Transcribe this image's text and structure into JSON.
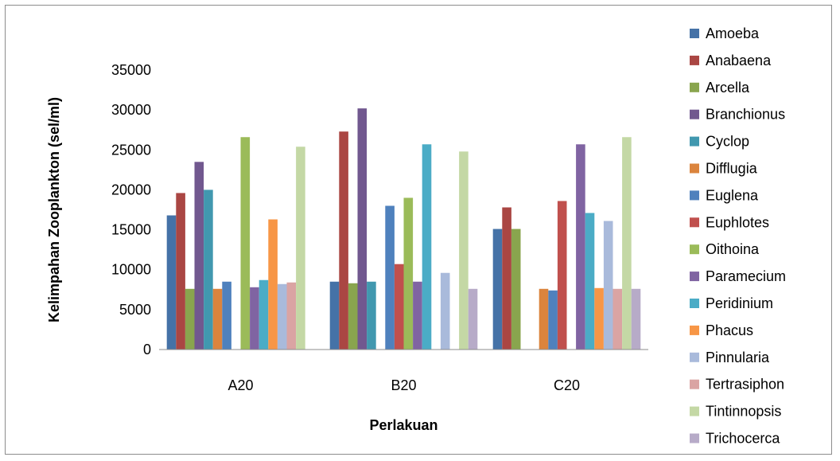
{
  "chart_data": {
    "type": "bar",
    "title": "",
    "xlabel": "Perlakuan",
    "ylabel": "Kelimpahan Zooplankton (sel/ml)",
    "categories": [
      "A20",
      "B20",
      "C20"
    ],
    "ylim": [
      0,
      35000
    ],
    "yticks": [
      0,
      5000,
      10000,
      15000,
      20000,
      25000,
      30000,
      35000
    ],
    "grid": false,
    "legend": "right",
    "series": [
      {
        "name": "Amoeba",
        "color": "#4572A7",
        "values": [
          16800,
          8500,
          15100
        ]
      },
      {
        "name": "Anabaena",
        "color": "#AA4643",
        "values": [
          19600,
          27300,
          17800
        ]
      },
      {
        "name": "Arcella",
        "color": "#89A54E",
        "values": [
          7600,
          8300,
          15100
        ]
      },
      {
        "name": "Branchionus",
        "color": "#71588F",
        "values": [
          23500,
          30200,
          null
        ]
      },
      {
        "name": "Cyclop",
        "color": "#4198AF",
        "values": [
          20000,
          8500,
          null
        ]
      },
      {
        "name": "Difflugia",
        "color": "#DB843D",
        "values": [
          7600,
          null,
          7600
        ]
      },
      {
        "name": "Euglena",
        "color": "#4F81BD",
        "values": [
          8500,
          18000,
          7400
        ]
      },
      {
        "name": "Euphlotes",
        "color": "#C0504D",
        "values": [
          null,
          10700,
          18600
        ]
      },
      {
        "name": "Oithoina",
        "color": "#9BBB59",
        "values": [
          26600,
          19000,
          null
        ]
      },
      {
        "name": "Paramecium",
        "color": "#8064A2",
        "values": [
          7800,
          8500,
          25700
        ]
      },
      {
        "name": "Peridinium",
        "color": "#4BACC6",
        "values": [
          8700,
          25700,
          17100
        ]
      },
      {
        "name": "Phacus",
        "color": "#F79646",
        "values": [
          16300,
          null,
          7700
        ]
      },
      {
        "name": "Pinnularia",
        "color": "#A9BADB",
        "values": [
          8200,
          9600,
          16100
        ]
      },
      {
        "name": "Tertrasiphon",
        "color": "#DAA4A3",
        "values": [
          8400,
          null,
          7600
        ]
      },
      {
        "name": "Tintinnopsis",
        "color": "#C4D8A5",
        "values": [
          25400,
          24800,
          26600
        ]
      },
      {
        "name": "Trichocerca",
        "color": "#B7ABC8",
        "values": [
          null,
          7600,
          7600
        ]
      }
    ]
  }
}
